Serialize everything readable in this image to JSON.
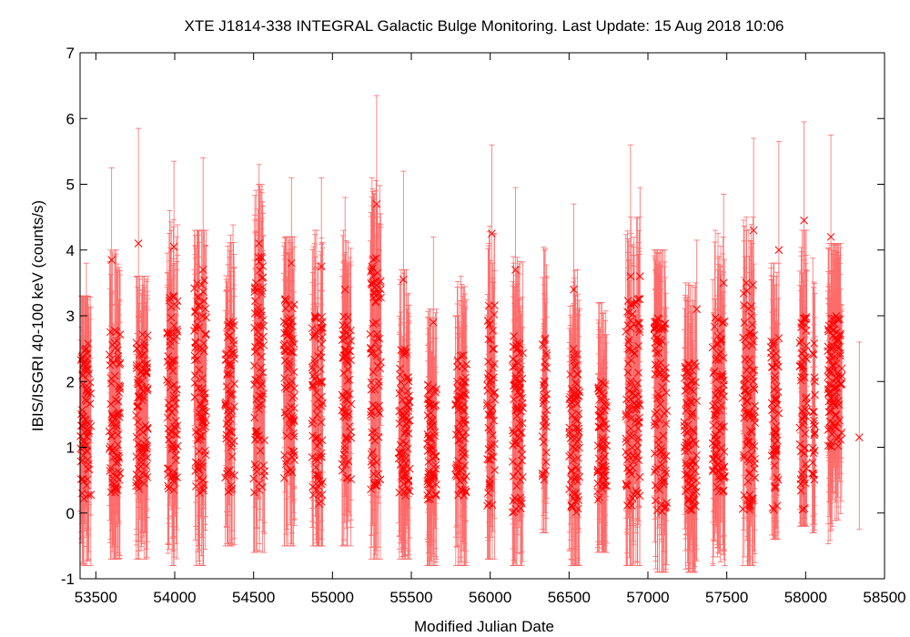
{
  "chart_data": {
    "type": "scatter",
    "title": "XTE J1814-338   INTEGRAL Galactic Bulge Monitoring.  Last Update: 15 Aug 2018 10:06",
    "xlabel": "Modified Julian Date",
    "ylabel": "IBIS/ISGRI 40-100 keV (counts/s)",
    "xlim": [
      53400,
      58500
    ],
    "ylim": [
      -1,
      7
    ],
    "xticks": [
      53500,
      54000,
      54500,
      55000,
      55500,
      56000,
      56500,
      57000,
      57500,
      58000,
      58500
    ],
    "yticks": [
      -1,
      0,
      1,
      2,
      3,
      4,
      5,
      6,
      7
    ],
    "grid": false,
    "legend": "none",
    "marker": "x",
    "series_color": "#ff0000",
    "error_bar_color": "#ff6a6a",
    "visibility_windows": [
      {
        "start": 53400,
        "end": 53470
      },
      {
        "start": 53585,
        "end": 53655
      },
      {
        "start": 53755,
        "end": 53830
      },
      {
        "start": 53950,
        "end": 54020
      },
      {
        "start": 54120,
        "end": 54200
      },
      {
        "start": 54320,
        "end": 54380
      },
      {
        "start": 54500,
        "end": 54570
      },
      {
        "start": 54690,
        "end": 54760
      },
      {
        "start": 54870,
        "end": 54940
      },
      {
        "start": 55060,
        "end": 55120
      },
      {
        "start": 55240,
        "end": 55310
      },
      {
        "start": 55420,
        "end": 55490
      },
      {
        "start": 55600,
        "end": 55660
      },
      {
        "start": 55780,
        "end": 55850
      },
      {
        "start": 55980,
        "end": 56030
      },
      {
        "start": 56140,
        "end": 56210
      },
      {
        "start": 56330,
        "end": 56360
      },
      {
        "start": 56500,
        "end": 56570
      },
      {
        "start": 56680,
        "end": 56740
      },
      {
        "start": 56860,
        "end": 56950
      },
      {
        "start": 57040,
        "end": 57120
      },
      {
        "start": 57230,
        "end": 57310
      },
      {
        "start": 57410,
        "end": 57490
      },
      {
        "start": 57600,
        "end": 57680
      },
      {
        "start": 57780,
        "end": 57830
      },
      {
        "start": 57960,
        "end": 58010
      },
      {
        "start": 58040,
        "end": 58060
      },
      {
        "start": 58140,
        "end": 58230
      }
    ],
    "highlighted_points": [
      {
        "x": 53440,
        "y": 2.5,
        "yerr_low": -0.8,
        "yerr_high": 3.8
      },
      {
        "x": 53600,
        "y": 3.85,
        "yerr_low": 2.5,
        "yerr_high": 5.25
      },
      {
        "x": 53770,
        "y": 4.1,
        "yerr_low": 2.6,
        "yerr_high": 5.85
      },
      {
        "x": 53995,
        "y": 4.05,
        "yerr_low": 2.7,
        "yerr_high": 5.35
      },
      {
        "x": 54180,
        "y": 3.7,
        "yerr_low": 2.1,
        "yerr_high": 5.4
      },
      {
        "x": 54535,
        "y": 4.1,
        "yerr_low": 2.8,
        "yerr_high": 5.3
      },
      {
        "x": 54740,
        "y": 3.8,
        "yerr_low": 2.3,
        "yerr_high": 5.1
      },
      {
        "x": 54930,
        "y": 3.75,
        "yerr_low": 2.5,
        "yerr_high": 5.1
      },
      {
        "x": 55080,
        "y": 3.4,
        "yerr_low": 2.0,
        "yerr_high": 4.8
      },
      {
        "x": 55280,
        "y": 4.7,
        "yerr_low": 3.0,
        "yerr_high": 6.35
      },
      {
        "x": 55450,
        "y": 3.55,
        "yerr_low": 2.1,
        "yerr_high": 5.2
      },
      {
        "x": 55640,
        "y": 2.9,
        "yerr_low": 1.6,
        "yerr_high": 4.2
      },
      {
        "x": 56010,
        "y": 4.25,
        "yerr_low": 2.9,
        "yerr_high": 5.6
      },
      {
        "x": 56160,
        "y": 3.7,
        "yerr_low": 2.4,
        "yerr_high": 4.95
      },
      {
        "x": 56530,
        "y": 3.4,
        "yerr_low": 2.0,
        "yerr_high": 4.7
      },
      {
        "x": 56890,
        "y": 3.6,
        "yerr_low": 2.2,
        "yerr_high": 5.6
      },
      {
        "x": 56950,
        "y": 3.6,
        "yerr_low": 2.3,
        "yerr_high": 4.95
      },
      {
        "x": 57310,
        "y": 3.1,
        "yerr_low": 1.9,
        "yerr_high": 4.15
      },
      {
        "x": 57480,
        "y": 3.5,
        "yerr_low": 2.2,
        "yerr_high": 4.85
      },
      {
        "x": 57670,
        "y": 4.3,
        "yerr_low": 3.0,
        "yerr_high": 5.7
      },
      {
        "x": 57830,
        "y": 4.0,
        "yerr_low": 2.6,
        "yerr_high": 5.65
      },
      {
        "x": 57990,
        "y": 4.45,
        "yerr_low": 3.1,
        "yerr_high": 5.95
      },
      {
        "x": 58160,
        "y": 4.2,
        "yerr_low": 2.8,
        "yerr_high": 5.75
      },
      {
        "x": 58340,
        "y": 1.15,
        "yerr_low": -0.25,
        "yerr_high": 2.6
      }
    ],
    "window_flux_ranges": [
      {
        "center_low": 0.2,
        "center_high": 2.6,
        "err_low": -0.8,
        "err_high": 3.3
      },
      {
        "center_low": 0.3,
        "center_high": 2.8,
        "err_low": -0.7,
        "err_high": 4.0
      },
      {
        "center_low": 0.3,
        "center_high": 2.8,
        "err_low": -0.7,
        "err_high": 3.6
      },
      {
        "center_low": 0.3,
        "center_high": 3.4,
        "err_low": -0.8,
        "err_high": 4.6
      },
      {
        "center_low": 0.3,
        "center_high": 3.6,
        "err_low": -0.8,
        "err_high": 4.3
      },
      {
        "center_low": 0.3,
        "center_high": 3.0,
        "err_low": -0.5,
        "err_high": 4.7
      },
      {
        "center_low": 0.3,
        "center_high": 3.9,
        "err_low": -0.6,
        "err_high": 5.0
      },
      {
        "center_low": 0.5,
        "center_high": 3.3,
        "err_low": -0.5,
        "err_high": 4.2
      },
      {
        "center_low": 0.0,
        "center_high": 3.1,
        "err_low": -0.5,
        "err_high": 4.3
      },
      {
        "center_low": 0.5,
        "center_high": 3.0,
        "err_low": -0.5,
        "err_high": 4.5
      },
      {
        "center_low": 0.3,
        "center_high": 3.9,
        "err_low": -0.7,
        "err_high": 5.1
      },
      {
        "center_low": 0.2,
        "center_high": 2.5,
        "err_low": -0.7,
        "err_high": 3.7
      },
      {
        "center_low": 0.2,
        "center_high": 2.0,
        "err_low": -0.8,
        "err_high": 3.1
      },
      {
        "center_low": 0.2,
        "center_high": 2.4,
        "err_low": -0.8,
        "err_high": 3.6
      },
      {
        "center_low": 0.1,
        "center_high": 3.2,
        "err_low": -0.7,
        "err_high": 4.4
      },
      {
        "center_low": 0.0,
        "center_high": 2.7,
        "err_low": -0.8,
        "err_high": 3.9
      },
      {
        "center_low": 0.5,
        "center_high": 2.8,
        "err_low": -0.3,
        "err_high": 4.7
      },
      {
        "center_low": 0.0,
        "center_high": 2.5,
        "err_low": -0.8,
        "err_high": 3.7
      },
      {
        "center_low": 0.2,
        "center_high": 2.0,
        "err_low": -0.6,
        "err_high": 3.2
      },
      {
        "center_low": 0.1,
        "center_high": 3.3,
        "err_low": -0.8,
        "err_high": 4.5
      },
      {
        "center_low": 0.0,
        "center_high": 3.0,
        "err_low": -0.9,
        "err_high": 4.0
      },
      {
        "center_low": 0.0,
        "center_high": 2.3,
        "err_low": -0.9,
        "err_high": 3.5
      },
      {
        "center_low": 0.3,
        "center_high": 3.0,
        "err_low": -0.8,
        "err_high": 4.3
      },
      {
        "center_low": 0.0,
        "center_high": 3.5,
        "err_low": -0.8,
        "err_high": 4.5
      },
      {
        "center_low": 0.0,
        "center_high": 2.7,
        "err_low": -0.4,
        "err_high": 3.8
      },
      {
        "center_low": 0.0,
        "center_high": 3.0,
        "err_low": -0.2,
        "err_high": 4.3
      },
      {
        "center_low": 0.5,
        "center_high": 2.7,
        "err_low": -0.3,
        "err_high": 4.0
      },
      {
        "center_low": 1.0,
        "center_high": 3.0,
        "err_low": -0.6,
        "err_high": 4.1
      }
    ]
  }
}
